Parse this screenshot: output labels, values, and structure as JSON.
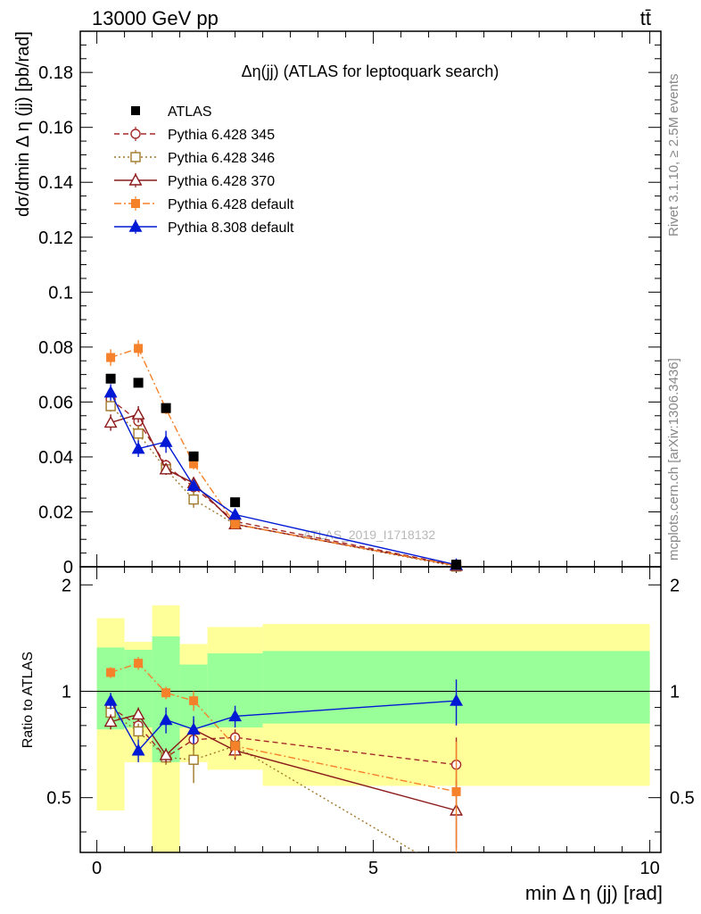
{
  "header": {
    "energy_label": "13000 GeV pp",
    "process_label": "tt̄",
    "plot_title": "Δη(jj) (ATLAS for leptoquark search)",
    "watermark": "ATLAS_2019_I1718132",
    "side_rivet": "Rivet 3.1.10, ≥ 2.5M events",
    "side_mcplots": "mcplots.cern.ch [arXiv:1306.3436]"
  },
  "colors": {
    "data": "#000000",
    "p345": "#a52a2a",
    "p346": "#a0782a",
    "p370": "#8b1a1a",
    "p6def": "#f5812a",
    "p8def": "#0019d4",
    "band_inner": "#99ff99",
    "band_outer": "#ffff99"
  },
  "chart_data": [
    {
      "type": "line",
      "panel": "main",
      "ylabel": "dσ/dmin Δ η (jj) [pb/rad]",
      "xlim": [
        -0.3,
        10.2
      ],
      "ylim": [
        0,
        0.195
      ],
      "yticks": [
        "0",
        "0.02",
        "0.04",
        "0.06",
        "0.08",
        "0.1",
        "0.12",
        "0.14",
        "0.16",
        "0.18"
      ],
      "legend_position": "top-left",
      "x": [
        0.25,
        0.75,
        1.25,
        1.75,
        2.5,
        6.5
      ],
      "series": [
        {
          "name": "ATLAS",
          "key": "data",
          "marker": "square-filled",
          "values": [
            0.0685,
            0.067,
            0.0578,
            0.0402,
            0.0235,
            0.0008
          ]
        },
        {
          "name": "Pythia 6.428 345",
          "key": "p345",
          "marker": "circle-open",
          "dash": "6,4",
          "values": [
            0.061,
            0.053,
            0.037,
            0.029,
            0.0165,
            0.0005
          ],
          "err": [
            0.002,
            0.003,
            0.002,
            0.002,
            0.001,
            0.0001
          ]
        },
        {
          "name": "Pythia 6.428 346",
          "key": "p346",
          "marker": "square-open",
          "dash": "2,3",
          "values": [
            0.0585,
            0.0485,
            0.0355,
            0.0245,
            0.0155,
            0.0001
          ],
          "err": [
            0.002,
            0.003,
            0.002,
            0.003,
            0.001,
            0.0001
          ]
        },
        {
          "name": "Pythia 6.428 370",
          "key": "p370",
          "marker": "triangle-open",
          "dash": "",
          "values": [
            0.0525,
            0.0555,
            0.0355,
            0.0305,
            0.0155,
            0.0004
          ],
          "err": [
            0.003,
            0.003,
            0.002,
            0.002,
            0.001,
            0.0001
          ]
        },
        {
          "name": "Pythia 6.428 default",
          "key": "p6def",
          "marker": "square-filled",
          "dash": "8,3,2,3",
          "values": [
            0.0762,
            0.0795,
            0.0575,
            0.0375,
            0.0155,
            0.0004
          ],
          "err": [
            0.003,
            0.003,
            0.002,
            0.002,
            0.001,
            0.0001
          ]
        },
        {
          "name": "Pythia 8.308 default",
          "key": "p8def",
          "marker": "triangle-filled",
          "dash": "",
          "values": [
            0.0635,
            0.043,
            0.0455,
            0.0295,
            0.019,
            0.0007
          ],
          "err": [
            0.003,
            0.003,
            0.004,
            0.002,
            0.0015,
            0.0001
          ]
        }
      ]
    },
    {
      "type": "line",
      "panel": "ratio",
      "ylabel": "Ratio to ATLAS",
      "xlabel": "min Δ η (jj) [rad]",
      "xlim": [
        -0.3,
        10.2
      ],
      "ylim": [
        0.35,
        2.25
      ],
      "xticks": [
        "0",
        "5",
        "10"
      ],
      "yticks": [
        "0.5",
        "1",
        "2"
      ],
      "reference_line": 1,
      "uncertainty_bands": {
        "edges": [
          0,
          0.5,
          1,
          1.5,
          2,
          3,
          10
        ],
        "inner": [
          [
            0.78,
            1.33
          ],
          [
            0.79,
            1.31
          ],
          [
            0.63,
            1.43
          ],
          [
            0.79,
            1.19
          ],
          [
            0.79,
            1.28
          ],
          [
            0.81,
            1.3
          ]
        ],
        "outer": [
          [
            0.46,
            1.61
          ],
          [
            0.63,
            1.38
          ],
          [
            0.35,
            1.75
          ],
          [
            0.63,
            1.36
          ],
          [
            0.6,
            1.52
          ],
          [
            0.54,
            1.55
          ]
        ]
      },
      "x": [
        0.25,
        0.75,
        1.25,
        1.75,
        2.5,
        6.5
      ],
      "series": [
        {
          "key": "p345",
          "marker": "circle-open",
          "dash": "6,4",
          "values": [
            0.9,
            0.8,
            0.65,
            0.73,
            0.74,
            0.62
          ],
          "err": [
            0.04,
            0.04,
            0.03,
            0.05,
            0.04,
            0.12
          ]
        },
        {
          "key": "p346",
          "marker": "square-open",
          "dash": "2,3",
          "values": [
            0.87,
            0.77,
            0.65,
            0.64,
            0.7,
            0.3
          ],
          "err": [
            0.03,
            0.04,
            0.03,
            0.09,
            0.05,
            0.05
          ]
        },
        {
          "key": "p370",
          "marker": "triangle-open",
          "dash": "",
          "values": [
            0.82,
            0.86,
            0.66,
            0.78,
            0.68,
            0.46
          ],
          "err": [
            0.04,
            0.04,
            0.03,
            0.05,
            0.04,
            0.1
          ]
        },
        {
          "key": "p6def",
          "marker": "square-filled",
          "dash": "8,3,2,3",
          "values": [
            1.13,
            1.2,
            0.99,
            0.94,
            0.7,
            0.52
          ],
          "err": [
            0.04,
            0.05,
            0.04,
            0.06,
            0.05,
            0.2
          ]
        },
        {
          "key": "p8def",
          "marker": "triangle-filled",
          "dash": "",
          "values": [
            0.94,
            0.68,
            0.83,
            0.78,
            0.85,
            0.94
          ],
          "err": [
            0.05,
            0.05,
            0.07,
            0.07,
            0.06,
            0.14
          ]
        }
      ]
    }
  ]
}
